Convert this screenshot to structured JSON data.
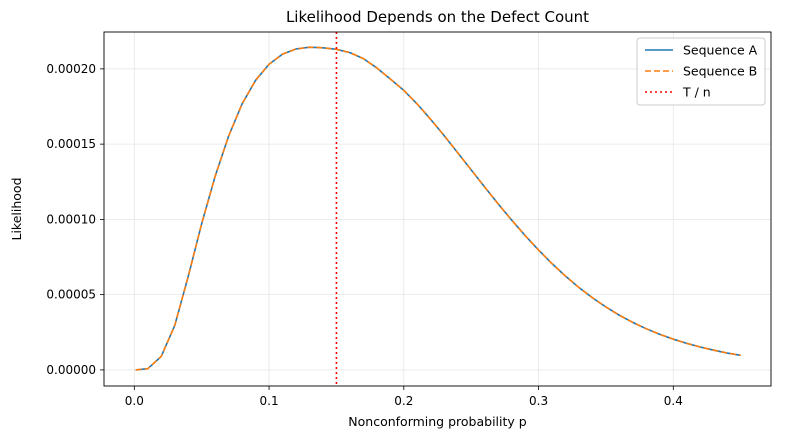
{
  "chart_data": {
    "type": "line",
    "title": "Likelihood Depends on the Defect Count",
    "xlabel": "Nonconforming probability p",
    "ylabel": "Likelihood",
    "xlim": [
      -0.0225,
      0.4725
    ],
    "ylim": [
      -1.07e-05,
      0.0002245
    ],
    "x_ticks": [
      0.0,
      0.1,
      0.2,
      0.3,
      0.4
    ],
    "x_tick_labels": [
      "0.0",
      "0.1",
      "0.2",
      "0.3",
      "0.4"
    ],
    "y_ticks": [
      0.0,
      5e-05,
      0.0001,
      0.00015,
      0.0002
    ],
    "y_tick_labels": [
      "0.00000",
      "0.00005",
      "0.00010",
      "0.00015",
      "0.00020"
    ],
    "grid": true,
    "legend_position": "upper right",
    "series": [
      {
        "name": "Sequence A",
        "color": "#1f77b4",
        "style": "solid",
        "x": [
          0.001,
          0.01,
          0.02,
          0.03,
          0.04,
          0.05,
          0.06,
          0.07,
          0.08,
          0.09,
          0.1,
          0.11,
          0.12,
          0.13,
          0.14,
          0.15,
          0.16,
          0.17,
          0.18,
          0.19,
          0.2,
          0.21,
          0.22,
          0.23,
          0.24,
          0.25,
          0.26,
          0.27,
          0.28,
          0.29,
          0.3,
          0.31,
          0.32,
          0.33,
          0.34,
          0.35,
          0.36,
          0.37,
          0.38,
          0.39,
          0.4,
          0.41,
          0.42,
          0.43,
          0.44,
          0.45
        ],
        "y": [
          0.0,
          8e-07,
          9e-06,
          2.95e-05,
          6.21e-05,
          9.72e-05,
          0.0001287,
          0.0001554,
          0.0001768,
          0.0001924,
          0.0002031,
          0.0002098,
          0.0002132,
          0.0002144,
          0.000214,
          0.000213,
          0.0002108,
          0.0002068,
          0.0002006,
          0.0001933,
          0.0001857,
          0.0001766,
          0.0001664,
          0.0001556,
          0.0001443,
          0.0001329,
          0.0001215,
          0.0001103,
          9.96e-05,
          8.93e-05,
          7.96e-05,
          7.06e-05,
          6.23e-05,
          5.47e-05,
          4.79e-05,
          4.18e-05,
          3.63e-05,
          3.15e-05,
          2.73e-05,
          2.36e-05,
          2.04e-05,
          1.76e-05,
          1.52e-05,
          1.31e-05,
          1.12e-05,
          9.7e-06
        ]
      },
      {
        "name": "Sequence B",
        "color": "#ff7f0e",
        "style": "dashed",
        "x": [
          0.001,
          0.01,
          0.02,
          0.03,
          0.04,
          0.05,
          0.06,
          0.07,
          0.08,
          0.09,
          0.1,
          0.11,
          0.12,
          0.13,
          0.14,
          0.15,
          0.16,
          0.17,
          0.18,
          0.19,
          0.2,
          0.21,
          0.22,
          0.23,
          0.24,
          0.25,
          0.26,
          0.27,
          0.28,
          0.29,
          0.3,
          0.31,
          0.32,
          0.33,
          0.34,
          0.35,
          0.36,
          0.37,
          0.38,
          0.39,
          0.4,
          0.41,
          0.42,
          0.43,
          0.44,
          0.45
        ],
        "y": [
          0.0,
          8e-07,
          9e-06,
          2.95e-05,
          6.21e-05,
          9.72e-05,
          0.0001287,
          0.0001554,
          0.0001768,
          0.0001924,
          0.0002031,
          0.0002098,
          0.0002132,
          0.0002144,
          0.000214,
          0.000213,
          0.0002108,
          0.0002068,
          0.0002006,
          0.0001933,
          0.0001857,
          0.0001766,
          0.0001664,
          0.0001556,
          0.0001443,
          0.0001329,
          0.0001215,
          0.0001103,
          9.96e-05,
          8.93e-05,
          7.96e-05,
          7.06e-05,
          6.23e-05,
          5.47e-05,
          4.79e-05,
          4.18e-05,
          3.63e-05,
          3.15e-05,
          2.73e-05,
          2.36e-05,
          2.04e-05,
          1.76e-05,
          1.52e-05,
          1.31e-05,
          1.12e-05,
          9.7e-06
        ]
      }
    ],
    "reference_line": {
      "name": "T / n",
      "orientation": "vertical",
      "x": 0.15,
      "color": "#ff0000",
      "style": "dotted"
    }
  }
}
